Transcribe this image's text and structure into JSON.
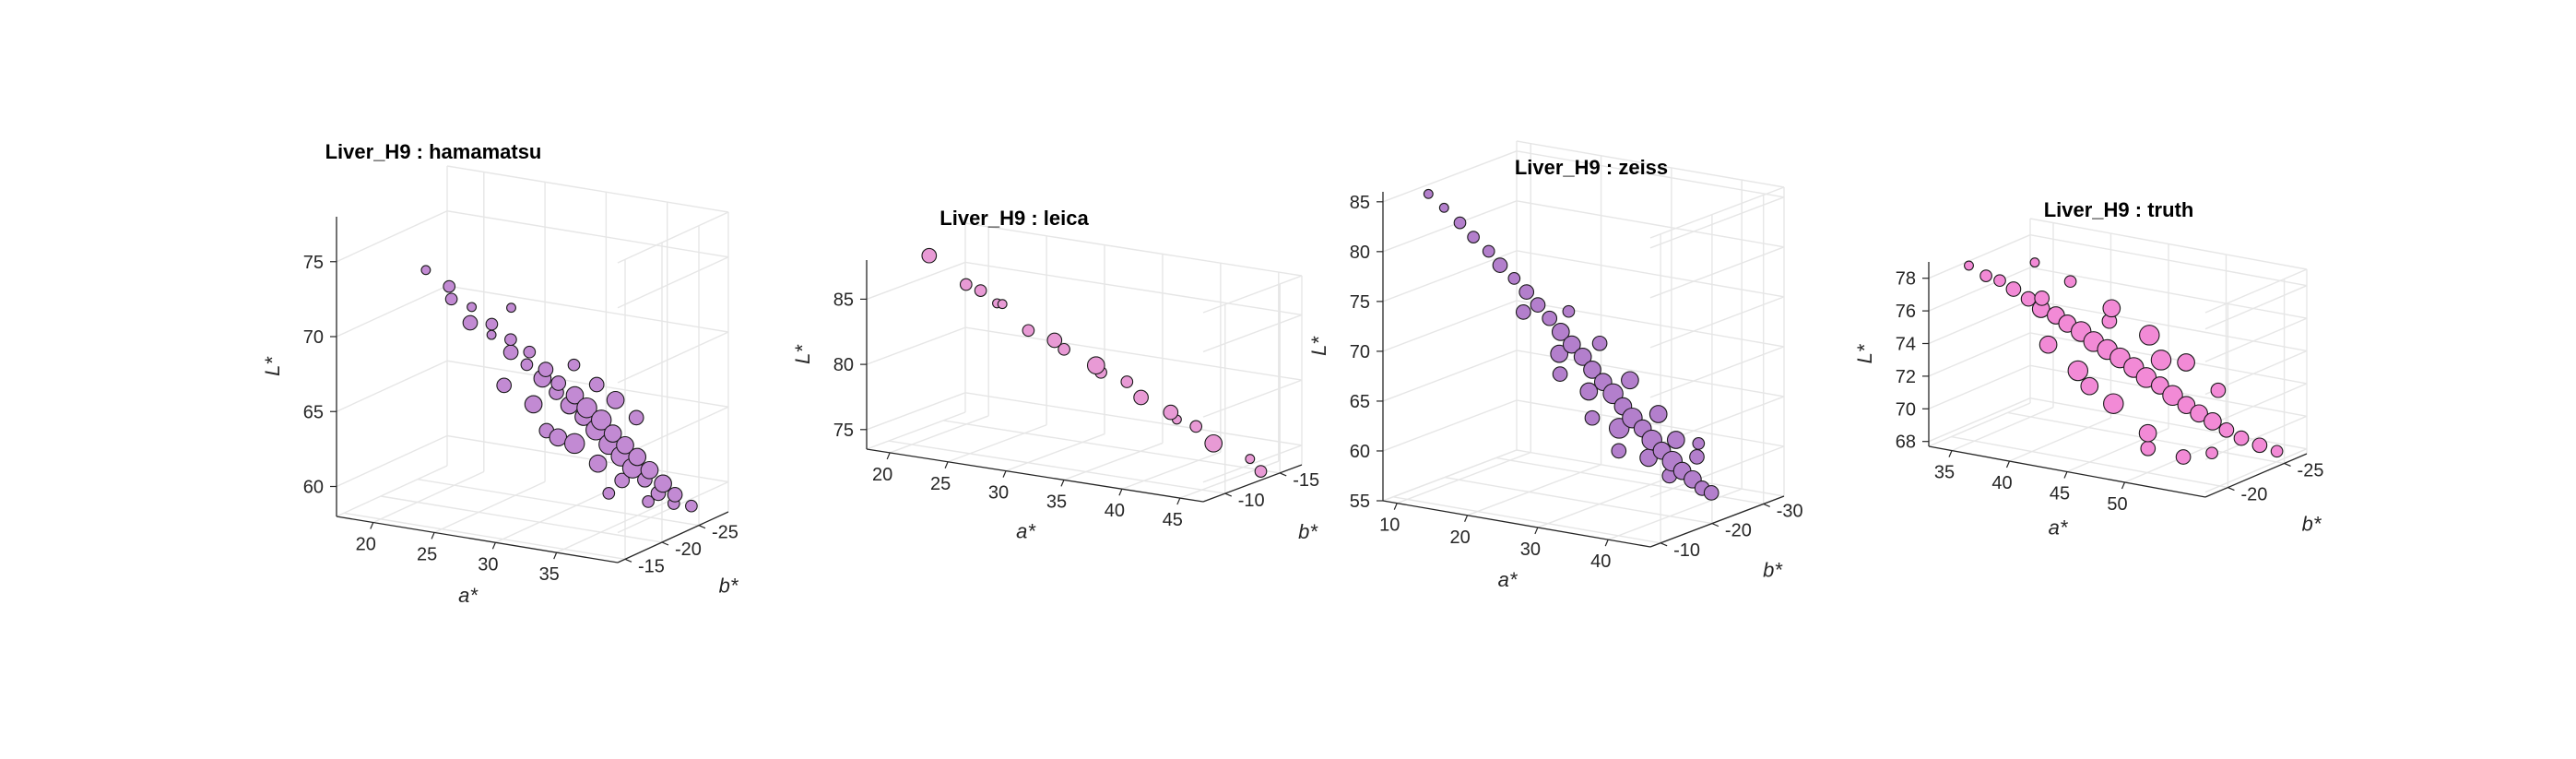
{
  "chart_data": [
    {
      "type": "scatter",
      "title": "Liver_H9 : hamamatsu",
      "xlabel": "a*",
      "ylabel": "b*",
      "zlabel": "L*",
      "xlim": [
        17,
        40
      ],
      "ylim": [
        -29,
        -14
      ],
      "zlim": [
        58,
        78
      ],
      "xticks": [
        20,
        25,
        30,
        35
      ],
      "yticks": [
        -25,
        -20,
        -15
      ],
      "zticks": [
        60,
        65,
        70,
        75
      ],
      "grid": true,
      "marker_color": "#c28ad3",
      "points": [
        [
          22.5,
          -17,
          74.5
        ],
        [
          23.5,
          -18.5,
          73.2
        ],
        [
          24.1,
          -17.8,
          72.6
        ],
        [
          24.8,
          -19.4,
          71.8
        ],
        [
          25.4,
          -18.2,
          71.1
        ],
        [
          25.9,
          -20.3,
          70.6
        ],
        [
          26.3,
          -19.6,
          70.1
        ],
        [
          26.9,
          -21.2,
          69.5
        ],
        [
          27.4,
          -20.4,
          68.9
        ],
        [
          27.9,
          -22.1,
          68.6
        ],
        [
          28.4,
          -20.9,
          68.1
        ],
        [
          28.8,
          -22.8,
          67.4
        ],
        [
          29.2,
          -21.7,
          67.1
        ],
        [
          29.6,
          -23.2,
          66.5
        ],
        [
          30.1,
          -22.1,
          66.2
        ],
        [
          30.4,
          -24.1,
          65.6
        ],
        [
          30.8,
          -22.7,
          65.3
        ],
        [
          31.2,
          -24.4,
          64.8
        ],
        [
          31.6,
          -23.3,
          64.5
        ],
        [
          31.9,
          -25.2,
          63.9
        ],
        [
          32.3,
          -23.8,
          63.6
        ],
        [
          32.6,
          -25.6,
          63.0
        ],
        [
          33.0,
          -24.4,
          62.6
        ],
        [
          33.3,
          -26.1,
          62.2
        ],
        [
          33.7,
          -24.9,
          61.8
        ],
        [
          34.0,
          -26.6,
          61.4
        ],
        [
          34.4,
          -25.3,
          61.0
        ],
        [
          34.7,
          -27.1,
          60.5
        ],
        [
          35.1,
          -25.8,
          60.2
        ],
        [
          35.5,
          -27.6,
          59.6
        ],
        [
          35.9,
          -26.3,
          59.3
        ],
        [
          36.3,
          -27.9,
          58.9
        ],
        [
          36.8,
          -26.9,
          58.6
        ],
        [
          37.4,
          -28.3,
          58.2
        ],
        [
          27.2,
          -19.8,
          66.8
        ],
        [
          28.7,
          -21.3,
          65.4
        ],
        [
          30.6,
          -21.5,
          63.4
        ],
        [
          31.4,
          -22.4,
          62.9
        ],
        [
          32.9,
          -23.1,
          61.6
        ],
        [
          34.2,
          -24.2,
          60.4
        ],
        [
          29.9,
          -24.8,
          67.4
        ],
        [
          31.1,
          -25.9,
          66.0
        ],
        [
          33.5,
          -27.3,
          63.8
        ],
        [
          26.1,
          -22.6,
          71.2
        ],
        [
          35.8,
          -25.1,
          59.0
        ],
        [
          30.2,
          -20.6,
          64.0
        ],
        [
          32.1,
          -26.8,
          64.9
        ],
        [
          33.9,
          -22.9,
          59.8
        ]
      ],
      "sizes": [
        2,
        3,
        3,
        2,
        4,
        3,
        2,
        3,
        4,
        3,
        3,
        4,
        5,
        4,
        4,
        5,
        5,
        6,
        5,
        6,
        6,
        5,
        6,
        5,
        6,
        5,
        6,
        5,
        4,
        5,
        4,
        4,
        3,
        3,
        4,
        5,
        5,
        6,
        5,
        4,
        3,
        4,
        4,
        2,
        3,
        4,
        5,
        3
      ]
    },
    {
      "type": "scatter",
      "title": "Liver_H9 : leica",
      "xlabel": "a*",
      "ylabel": "b*",
      "zlabel": "L*",
      "xlim": [
        18,
        47
      ],
      "ylim": [
        -17,
        -8
      ],
      "zlim": [
        73.5,
        88
      ],
      "xticks": [
        20,
        25,
        30,
        35,
        40,
        45
      ],
      "yticks": [
        -15,
        -10
      ],
      "zticks": [
        75,
        80,
        85
      ],
      "grid": true,
      "marker_color": "#e89ad5",
      "points": [
        [
          21.5,
          -10,
          88.2
        ],
        [
          24.2,
          -10.5,
          86.2
        ],
        [
          24.8,
          -11.2,
          85.6
        ],
        [
          26.6,
          -10.8,
          85.0
        ],
        [
          26.2,
          -11.7,
          84.6
        ],
        [
          29.1,
          -11,
          83.2
        ],
        [
          30.6,
          -11.8,
          82.4
        ],
        [
          31.8,
          -11.4,
          82.0
        ],
        [
          33.8,
          -12.2,
          80.8
        ],
        [
          34.6,
          -11.8,
          80.5
        ],
        [
          35.8,
          -12.9,
          79.6
        ],
        [
          37.3,
          -12.6,
          78.7
        ],
        [
          39.2,
          -13.3,
          77.6
        ],
        [
          40.1,
          -12.9,
          77.3
        ],
        [
          40.9,
          -13.8,
          76.6
        ],
        [
          42.6,
          -13.6,
          75.6
        ],
        [
          44.8,
          -14.6,
          74.4
        ],
        [
          46.2,
          -14.1,
          73.8
        ]
      ],
      "sizes": [
        4,
        3,
        3,
        2,
        2,
        3,
        4,
        3,
        5,
        3,
        3,
        4,
        4,
        2,
        3,
        5,
        2,
        3
      ]
    },
    {
      "type": "scatter",
      "title": "Liver_H9 : zeiss",
      "xlabel": "a*",
      "ylabel": "b*",
      "zlabel": "L*",
      "xlim": [
        8,
        46
      ],
      "ylim": [
        -34,
        -8
      ],
      "zlim": [
        55,
        86
      ],
      "xticks": [
        10,
        20,
        30,
        40
      ],
      "yticks": [
        -30,
        -20,
        -10
      ],
      "zticks": [
        55,
        60,
        65,
        70,
        75,
        80,
        85
      ],
      "grid": true,
      "marker_color": "#b37fcc",
      "points": [
        [
          13,
          -10,
          86.0
        ],
        [
          14.5,
          -11,
          84.6
        ],
        [
          15.8,
          -12.3,
          83.0
        ],
        [
          17.2,
          -13,
          81.6
        ],
        [
          18.5,
          -14.2,
          80.1
        ],
        [
          19.6,
          -14.9,
          78.7
        ],
        [
          20.8,
          -16,
          77.3
        ],
        [
          21.9,
          -16.9,
          75.9
        ],
        [
          23,
          -17.6,
          74.6
        ],
        [
          24,
          -18.5,
          73.2
        ],
        [
          25,
          -19.3,
          71.8
        ],
        [
          26,
          -20.1,
          70.5
        ],
        [
          26.9,
          -21,
          69.2
        ],
        [
          27.8,
          -21.6,
          67.9
        ],
        [
          28.7,
          -22.5,
          66.6
        ],
        [
          29.6,
          -23.2,
          65.4
        ],
        [
          30.5,
          -23.9,
          64.1
        ],
        [
          31.3,
          -24.6,
          62.9
        ],
        [
          32.2,
          -25.4,
          61.8
        ],
        [
          33,
          -26.1,
          60.6
        ],
        [
          33.9,
          -26.8,
          59.5
        ],
        [
          34.8,
          -27.6,
          58.4
        ],
        [
          35.7,
          -28.3,
          57.4
        ],
        [
          36.6,
          -29.1,
          56.5
        ],
        [
          37.5,
          -29.7,
          55.6
        ],
        [
          38.3,
          -30.4,
          55.1
        ],
        [
          22.4,
          -15.6,
          74.2
        ],
        [
          25.6,
          -18.2,
          69.9
        ],
        [
          28.2,
          -20.4,
          66.0
        ],
        [
          30.9,
          -22.6,
          62.2
        ],
        [
          33.4,
          -24.9,
          59.1
        ],
        [
          35.2,
          -26.5,
          57.2
        ],
        [
          27.4,
          -23.6,
          70.1
        ],
        [
          30.1,
          -25.8,
          66.3
        ],
        [
          32.6,
          -27.9,
          62.8
        ],
        [
          34.3,
          -29.0,
          60.2
        ],
        [
          36.1,
          -30.6,
          58.4
        ],
        [
          24.6,
          -21.4,
          73.4
        ],
        [
          29.2,
          -19.7,
          63.6
        ],
        [
          31.8,
          -21.3,
          60.3
        ],
        [
          26.3,
          -17.4,
          68.1
        ],
        [
          35.9,
          -31.2,
          59.6
        ]
      ],
      "sizes": [
        2,
        2,
        3,
        3,
        3,
        4,
        3,
        4,
        4,
        4,
        5,
        5,
        5,
        5,
        5,
        6,
        5,
        6,
        5,
        6,
        5,
        6,
        5,
        5,
        4,
        4,
        4,
        5,
        5,
        6,
        5,
        4,
        4,
        5,
        5,
        5,
        4,
        3,
        4,
        4,
        4,
        3
      ]
    },
    {
      "type": "scatter",
      "title": "Liver_H9 : truth",
      "xlabel": "a*",
      "ylabel": "b*",
      "zlabel": "L*",
      "xlim": [
        33,
        57
      ],
      "ylim": [
        -27,
        -18
      ],
      "zlim": [
        67.7,
        79
      ],
      "xticks": [
        35,
        40,
        45,
        50
      ],
      "yticks": [
        -25,
        -20
      ],
      "zticks": [
        68,
        70,
        72,
        74,
        76,
        78
      ],
      "grid": true,
      "marker_color": "#f28ad6",
      "points": [
        [
          35.5,
          -19,
          78.8
        ],
        [
          36.6,
          -19.4,
          78.2
        ],
        [
          37.4,
          -19.8,
          77.9
        ],
        [
          38.3,
          -20.1,
          77.4
        ],
        [
          39.2,
          -20.5,
          76.8
        ],
        [
          40.0,
          -20.8,
          76.2
        ],
        [
          40.9,
          -21.2,
          75.8
        ],
        [
          41.6,
          -21.5,
          75.3
        ],
        [
          42.4,
          -21.9,
          74.8
        ],
        [
          43.2,
          -22.2,
          74.2
        ],
        [
          44.0,
          -22.6,
          73.7
        ],
        [
          44.8,
          -22.9,
          73.2
        ],
        [
          45.6,
          -23.3,
          72.6
        ],
        [
          46.4,
          -23.6,
          72.0
        ],
        [
          47.2,
          -24.0,
          71.5
        ],
        [
          48.0,
          -24.3,
          70.9
        ],
        [
          48.8,
          -24.7,
          70.3
        ],
        [
          49.6,
          -25.0,
          69.8
        ],
        [
          50.4,
          -25.4,
          69.3
        ],
        [
          51.3,
          -25.7,
          68.8
        ],
        [
          52.2,
          -26.1,
          68.3
        ],
        [
          53.4,
          -26.5,
          67.9
        ],
        [
          54.6,
          -26.8,
          67.6
        ],
        [
          41.8,
          -19.6,
          74.6
        ],
        [
          43.6,
          -20.4,
          73.0
        ],
        [
          45.8,
          -21.3,
          71.0
        ],
        [
          47.9,
          -22.2,
          69.2
        ],
        [
          50.2,
          -23.0,
          67.8
        ],
        [
          40.2,
          -23.2,
          77.2
        ],
        [
          42.8,
          -24.2,
          75.6
        ],
        [
          45.2,
          -25.1,
          74.0
        ],
        [
          47.6,
          -25.9,
          72.4
        ],
        [
          49.8,
          -26.5,
          70.8
        ],
        [
          39.0,
          -21.9,
          76.4
        ],
        [
          44.4,
          -20.6,
          72.1
        ],
        [
          46.9,
          -24.4,
          72.9
        ],
        [
          48.7,
          -21.4,
          68.6
        ],
        [
          51.6,
          -24.1,
          67.9
        ],
        [
          37.9,
          -22.4,
          78.3
        ],
        [
          43.1,
          -23.7,
          75.0
        ]
      ],
      "sizes": [
        2,
        3,
        3,
        4,
        4,
        5,
        5,
        5,
        6,
        6,
        6,
        6,
        6,
        6,
        5,
        6,
        5,
        5,
        5,
        4,
        4,
        4,
        3,
        5,
        6,
        6,
        5,
        4,
        3,
        5,
        6,
        5,
        4,
        4,
        5,
        6,
        4,
        3,
        2,
        4
      ]
    }
  ]
}
